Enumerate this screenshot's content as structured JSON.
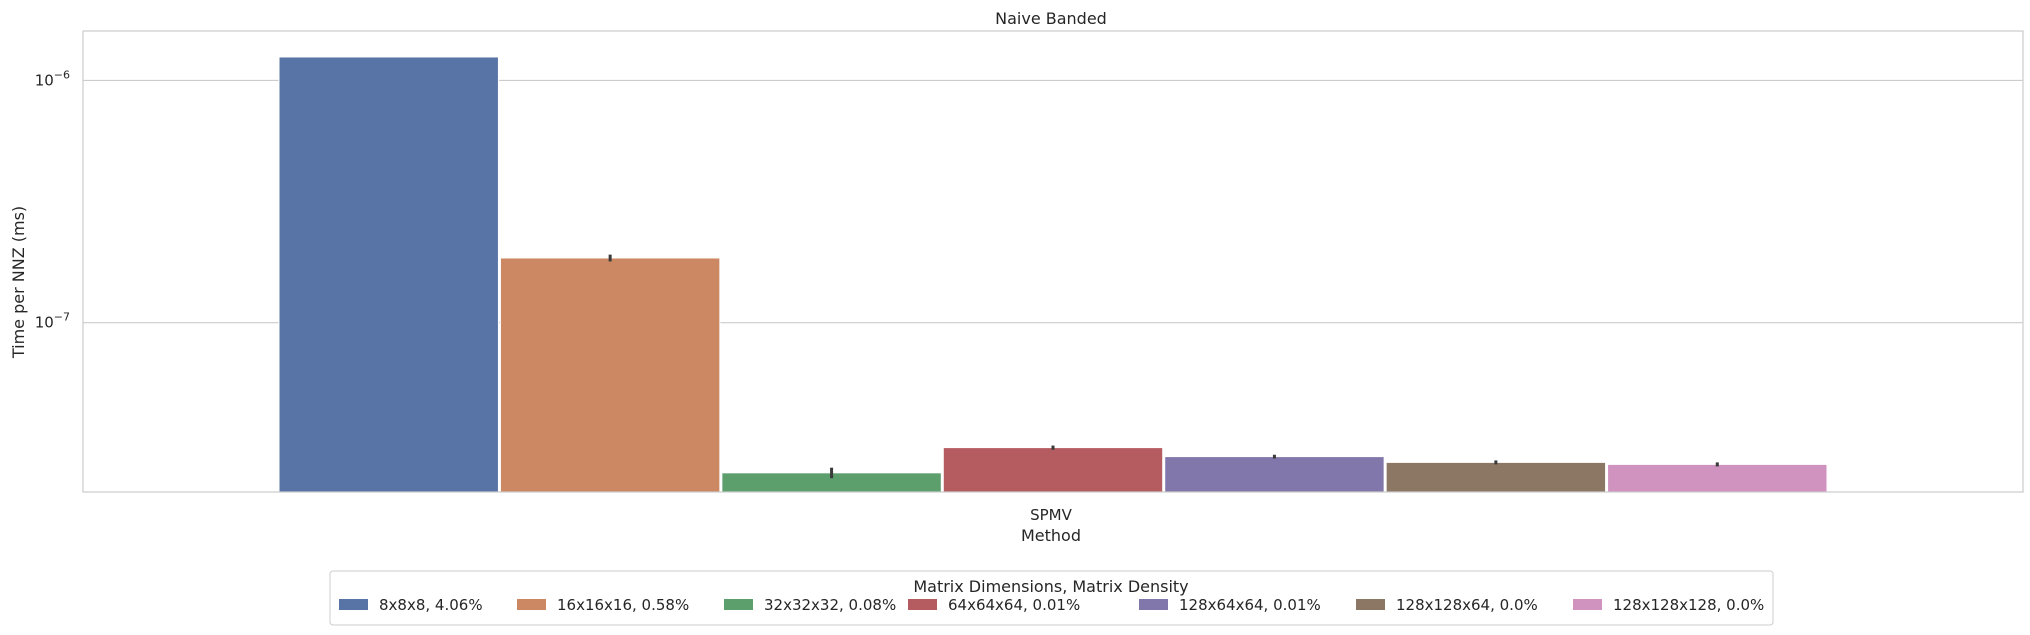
{
  "chart_data": {
    "type": "bar",
    "title": "Naive Banded",
    "xlabel": "Method",
    "ylabel": "Time per NNZ (ms)",
    "yscale": "log",
    "ylim": [
      2e-08,
      1.6e-06
    ],
    "yticks": [
      {
        "value": 1e-06,
        "base": "10",
        "exp": "−6"
      },
      {
        "value": 1e-07,
        "base": "10",
        "exp": "−7"
      }
    ],
    "grid": "horizontal",
    "categories": [
      "SPMV"
    ],
    "legend_title": "Matrix Dimensions, Matrix Density",
    "legend_position": "bottom-center",
    "series": [
      {
        "name": "8x8x8, 4.06%",
        "color": "#5874a6",
        "values": [
          1.25e-06
        ],
        "err": [
          0
        ]
      },
      {
        "name": "16x16x16, 0.58%",
        "color": "#cc8862",
        "values": [
          1.85e-07
        ],
        "err": [
          6e-09
        ]
      },
      {
        "name": "32x32x32, 0.08%",
        "color": "#5c9e6c",
        "values": [
          2.4e-08
        ],
        "err": [
          1.2e-09
        ]
      },
      {
        "name": "64x64x64, 0.01%",
        "color": "#b55c60",
        "values": [
          3.05e-08
        ],
        "err": [
          6e-10
        ]
      },
      {
        "name": "128x64x64, 0.01%",
        "color": "#8277aa",
        "values": [
          2.8e-08
        ],
        "err": [
          5e-10
        ]
      },
      {
        "name": "128x128x64, 0.0%",
        "color": "#8c7764",
        "values": [
          2.65e-08
        ],
        "err": [
          5e-10
        ]
      },
      {
        "name": "128x128x128, 0.0%",
        "color": "#d092be",
        "values": [
          2.6e-08
        ],
        "err": [
          5e-10
        ]
      }
    ]
  }
}
